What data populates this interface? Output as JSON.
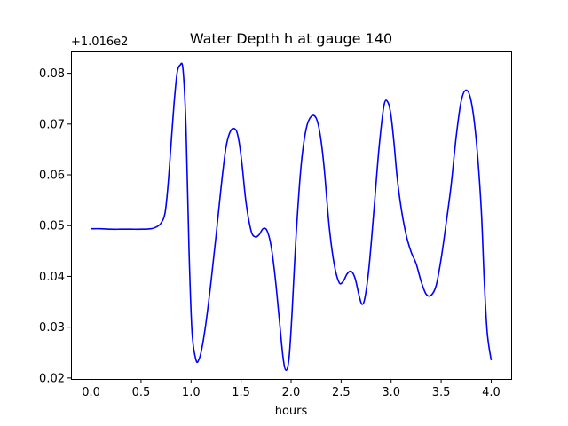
{
  "chart_data": {
    "type": "line",
    "title": "Water Depth h at gauge 140",
    "xlabel": "hours",
    "ylabel": "",
    "y_offset_label": "+1.016e2",
    "y_offset": 101.6,
    "xlim": [
      -0.2,
      4.2
    ],
    "ylim": [
      0.0198,
      0.0843
    ],
    "x_ticks": [
      0.0,
      0.5,
      1.0,
      1.5,
      2.0,
      2.5,
      3.0,
      3.5,
      4.0
    ],
    "x_tick_labels": [
      "0.0",
      "0.5",
      "1.0",
      "1.5",
      "2.0",
      "2.5",
      "3.0",
      "3.5",
      "4.0"
    ],
    "y_ticks": [
      0.02,
      0.03,
      0.04,
      0.05,
      0.06,
      0.07,
      0.08
    ],
    "y_tick_labels": [
      "0.02",
      "0.03",
      "0.04",
      "0.05",
      "0.06",
      "0.07",
      "0.08"
    ],
    "grid": false,
    "series": [
      {
        "color": "#0000ff",
        "x": [
          0.0,
          0.1,
          0.2,
          0.3,
          0.4,
          0.5,
          0.6,
          0.65,
          0.7,
          0.74,
          0.77,
          0.8,
          0.83,
          0.86,
          0.89,
          0.92,
          0.95,
          0.98,
          1.01,
          1.05,
          1.08,
          1.11,
          1.15,
          1.2,
          1.25,
          1.3,
          1.35,
          1.4,
          1.45,
          1.48,
          1.51,
          1.55,
          1.6,
          1.64,
          1.68,
          1.72,
          1.76,
          1.8,
          1.84,
          1.88,
          1.92,
          1.95,
          1.98,
          2.01,
          2.05,
          2.1,
          2.15,
          2.2,
          2.25,
          2.29,
          2.33,
          2.38,
          2.43,
          2.48,
          2.52,
          2.56,
          2.6,
          2.64,
          2.68,
          2.71,
          2.74,
          2.78,
          2.83,
          2.88,
          2.93,
          2.97,
          3.0,
          3.03,
          3.06,
          3.1,
          3.15,
          3.2,
          3.25,
          3.3,
          3.35,
          3.4,
          3.45,
          3.5,
          3.55,
          3.6,
          3.65,
          3.7,
          3.75,
          3.8,
          3.85,
          3.9,
          3.93,
          3.96,
          4.0
        ],
        "y": [
          0.0494,
          0.0494,
          0.0493,
          0.0493,
          0.0493,
          0.0493,
          0.0494,
          0.0497,
          0.0505,
          0.0525,
          0.058,
          0.066,
          0.074,
          0.08,
          0.0816,
          0.0807,
          0.069,
          0.045,
          0.029,
          0.0235,
          0.0237,
          0.026,
          0.031,
          0.039,
          0.048,
          0.0575,
          0.0655,
          0.0688,
          0.0688,
          0.0665,
          0.062,
          0.0545,
          0.049,
          0.0478,
          0.0482,
          0.0494,
          0.049,
          0.046,
          0.04,
          0.032,
          0.024,
          0.0215,
          0.024,
          0.033,
          0.048,
          0.0618,
          0.069,
          0.0715,
          0.0712,
          0.068,
          0.0615,
          0.05,
          0.0425,
          0.0388,
          0.039,
          0.0405,
          0.041,
          0.0396,
          0.0362,
          0.0345,
          0.036,
          0.042,
          0.0535,
          0.0655,
          0.0738,
          0.0742,
          0.0715,
          0.066,
          0.0595,
          0.0535,
          0.0482,
          0.0448,
          0.0425,
          0.039,
          0.0365,
          0.0363,
          0.0382,
          0.0435,
          0.0505,
          0.058,
          0.0675,
          0.0745,
          0.0767,
          0.0745,
          0.067,
          0.0535,
          0.0395,
          0.029,
          0.0235
        ]
      }
    ]
  }
}
